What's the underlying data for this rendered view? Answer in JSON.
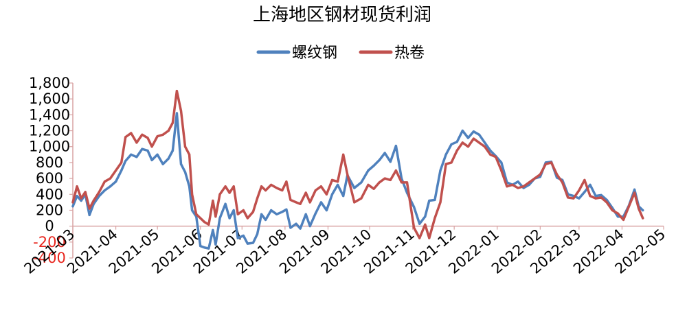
{
  "chart_data": {
    "type": "line",
    "title": "上海地区钢材现货利润",
    "xlabel": "",
    "ylabel": "",
    "ylim": [
      -400,
      1800
    ],
    "yticks": [
      -400,
      -200,
      0,
      200,
      400,
      600,
      800,
      1000,
      1200,
      1400,
      1600,
      1800
    ],
    "ytick_labels": [
      "-400",
      "-200",
      "0",
      "200",
      "400",
      "600",
      "800",
      "1,000",
      "1,200",
      "1,400",
      "1,600",
      "1,800"
    ],
    "negative_tick_color": "#e8261e",
    "xticks": [
      "2021-03",
      "2021-04",
      "2021-05",
      "2021-06",
      "2021-07",
      "2021-08",
      "2021-09",
      "2021-10",
      "2021-11",
      "2021-12",
      "2022-01",
      "2022-02",
      "2022-03",
      "2022-04",
      "2022-05"
    ],
    "legend_position": "top-center",
    "grid": false,
    "axis_color": "#d9a3a3",
    "series": [
      {
        "name": "螺纹钢",
        "color": "#4f81bd",
        "points": [
          [
            "2021-03-01",
            250
          ],
          [
            "2021-03-04",
            380
          ],
          [
            "2021-03-07",
            320
          ],
          [
            "2021-03-10",
            400
          ],
          [
            "2021-03-13",
            140
          ],
          [
            "2021-03-16",
            280
          ],
          [
            "2021-03-20",
            380
          ],
          [
            "2021-03-24",
            450
          ],
          [
            "2021-03-28",
            500
          ],
          [
            "2021-04-01",
            560
          ],
          [
            "2021-04-05",
            700
          ],
          [
            "2021-04-08",
            820
          ],
          [
            "2021-04-12",
            900
          ],
          [
            "2021-04-16",
            870
          ],
          [
            "2021-04-20",
            970
          ],
          [
            "2021-04-24",
            950
          ],
          [
            "2021-04-27",
            830
          ],
          [
            "2021-05-01",
            900
          ],
          [
            "2021-05-05",
            780
          ],
          [
            "2021-05-09",
            850
          ],
          [
            "2021-05-12",
            950
          ],
          [
            "2021-05-15",
            1420
          ],
          [
            "2021-05-18",
            780
          ],
          [
            "2021-05-21",
            680
          ],
          [
            "2021-05-24",
            500
          ],
          [
            "2021-05-26",
            200
          ],
          [
            "2021-05-29",
            120
          ],
          [
            "2021-06-01",
            -250
          ],
          [
            "2021-06-04",
            -270
          ],
          [
            "2021-06-07",
            -280
          ],
          [
            "2021-06-10",
            -50
          ],
          [
            "2021-06-12",
            -230
          ],
          [
            "2021-06-15",
            100
          ],
          [
            "2021-06-19",
            280
          ],
          [
            "2021-06-22",
            100
          ],
          [
            "2021-06-25",
            200
          ],
          [
            "2021-06-28",
            -150
          ],
          [
            "2021-07-02",
            -120
          ],
          [
            "2021-07-05",
            -220
          ],
          [
            "2021-07-09",
            -210
          ],
          [
            "2021-07-12",
            -100
          ],
          [
            "2021-07-15",
            150
          ],
          [
            "2021-07-18",
            80
          ],
          [
            "2021-07-22",
            200
          ],
          [
            "2021-07-26",
            150
          ],
          [
            "2021-07-30",
            180
          ],
          [
            "2021-08-02",
            210
          ],
          [
            "2021-08-05",
            -20
          ],
          [
            "2021-08-09",
            30
          ],
          [
            "2021-08-12",
            -30
          ],
          [
            "2021-08-16",
            150
          ],
          [
            "2021-08-19",
            0
          ],
          [
            "2021-08-23",
            160
          ],
          [
            "2021-08-27",
            300
          ],
          [
            "2021-08-31",
            200
          ],
          [
            "2021-09-04",
            400
          ],
          [
            "2021-09-08",
            520
          ],
          [
            "2021-09-12",
            380
          ],
          [
            "2021-09-15",
            640
          ],
          [
            "2021-09-20",
            480
          ],
          [
            "2021-09-25",
            550
          ],
          [
            "2021-09-30",
            700
          ],
          [
            "2021-10-04",
            760
          ],
          [
            "2021-10-08",
            830
          ],
          [
            "2021-10-12",
            920
          ],
          [
            "2021-10-16",
            810
          ],
          [
            "2021-10-20",
            1010
          ],
          [
            "2021-10-24",
            600
          ],
          [
            "2021-10-28",
            420
          ],
          [
            "2021-11-02",
            240
          ],
          [
            "2021-11-06",
            30
          ],
          [
            "2021-11-10",
            120
          ],
          [
            "2021-11-13",
            320
          ],
          [
            "2021-11-17",
            330
          ],
          [
            "2021-11-21",
            700
          ],
          [
            "2021-11-25",
            900
          ],
          [
            "2021-11-29",
            1030
          ],
          [
            "2021-12-03",
            1060
          ],
          [
            "2021-12-07",
            1200
          ],
          [
            "2021-12-11",
            1110
          ],
          [
            "2021-12-15",
            1190
          ],
          [
            "2021-12-19",
            1150
          ],
          [
            "2021-12-23",
            1050
          ],
          [
            "2021-12-27",
            950
          ],
          [
            "2021-12-31",
            880
          ],
          [
            "2022-01-04",
            800
          ],
          [
            "2022-01-08",
            550
          ],
          [
            "2022-01-12",
            520
          ],
          [
            "2022-01-16",
            560
          ],
          [
            "2022-01-20",
            480
          ],
          [
            "2022-01-24",
            520
          ],
          [
            "2022-01-28",
            600
          ],
          [
            "2022-02-01",
            620
          ],
          [
            "2022-02-05",
            800
          ],
          [
            "2022-02-09",
            810
          ],
          [
            "2022-02-13",
            610
          ],
          [
            "2022-02-17",
            580
          ],
          [
            "2022-02-21",
            400
          ],
          [
            "2022-02-25",
            380
          ],
          [
            "2022-03-01",
            350
          ],
          [
            "2022-03-05",
            430
          ],
          [
            "2022-03-09",
            520
          ],
          [
            "2022-03-13",
            380
          ],
          [
            "2022-03-17",
            390
          ],
          [
            "2022-03-21",
            330
          ],
          [
            "2022-03-25",
            230
          ],
          [
            "2022-03-29",
            120
          ],
          [
            "2022-04-02",
            120
          ],
          [
            "2022-04-06",
            260
          ],
          [
            "2022-04-10",
            460
          ],
          [
            "2022-04-13",
            250
          ],
          [
            "2022-04-16",
            200
          ]
        ]
      },
      {
        "name": "热卷",
        "color": "#c0504d",
        "points": [
          [
            "2021-03-01",
            300
          ],
          [
            "2021-03-04",
            500
          ],
          [
            "2021-03-07",
            350
          ],
          [
            "2021-03-10",
            430
          ],
          [
            "2021-03-13",
            220
          ],
          [
            "2021-03-16",
            320
          ],
          [
            "2021-03-20",
            430
          ],
          [
            "2021-03-24",
            560
          ],
          [
            "2021-03-28",
            600
          ],
          [
            "2021-04-01",
            700
          ],
          [
            "2021-04-05",
            800
          ],
          [
            "2021-04-08",
            1120
          ],
          [
            "2021-04-12",
            1170
          ],
          [
            "2021-04-16",
            1050
          ],
          [
            "2021-04-20",
            1150
          ],
          [
            "2021-04-24",
            1110
          ],
          [
            "2021-04-27",
            1000
          ],
          [
            "2021-05-01",
            1130
          ],
          [
            "2021-05-05",
            1150
          ],
          [
            "2021-05-09",
            1200
          ],
          [
            "2021-05-12",
            1300
          ],
          [
            "2021-05-15",
            1700
          ],
          [
            "2021-05-18",
            1450
          ],
          [
            "2021-05-21",
            1000
          ],
          [
            "2021-05-24",
            900
          ],
          [
            "2021-05-26",
            400
          ],
          [
            "2021-05-29",
            150
          ],
          [
            "2021-06-01",
            100
          ],
          [
            "2021-06-04",
            50
          ],
          [
            "2021-06-07",
            20
          ],
          [
            "2021-06-10",
            320
          ],
          [
            "2021-06-12",
            120
          ],
          [
            "2021-06-15",
            400
          ],
          [
            "2021-06-19",
            500
          ],
          [
            "2021-06-22",
            420
          ],
          [
            "2021-06-25",
            500
          ],
          [
            "2021-06-28",
            150
          ],
          [
            "2021-07-02",
            200
          ],
          [
            "2021-07-05",
            100
          ],
          [
            "2021-07-09",
            180
          ],
          [
            "2021-07-12",
            350
          ],
          [
            "2021-07-15",
            500
          ],
          [
            "2021-07-18",
            450
          ],
          [
            "2021-07-22",
            520
          ],
          [
            "2021-07-26",
            480
          ],
          [
            "2021-07-30",
            450
          ],
          [
            "2021-08-02",
            560
          ],
          [
            "2021-08-05",
            330
          ],
          [
            "2021-08-09",
            300
          ],
          [
            "2021-08-12",
            280
          ],
          [
            "2021-08-16",
            420
          ],
          [
            "2021-08-19",
            300
          ],
          [
            "2021-08-23",
            450
          ],
          [
            "2021-08-27",
            500
          ],
          [
            "2021-08-31",
            400
          ],
          [
            "2021-09-04",
            580
          ],
          [
            "2021-09-08",
            560
          ],
          [
            "2021-09-12",
            900
          ],
          [
            "2021-09-15",
            650
          ],
          [
            "2021-09-20",
            300
          ],
          [
            "2021-09-25",
            350
          ],
          [
            "2021-09-30",
            520
          ],
          [
            "2021-10-04",
            470
          ],
          [
            "2021-10-08",
            550
          ],
          [
            "2021-10-12",
            600
          ],
          [
            "2021-10-16",
            580
          ],
          [
            "2021-10-20",
            700
          ],
          [
            "2021-10-24",
            550
          ],
          [
            "2021-10-28",
            550
          ],
          [
            "2021-11-02",
            -20
          ],
          [
            "2021-11-06",
            -150
          ],
          [
            "2021-11-10",
            20
          ],
          [
            "2021-11-13",
            -150
          ],
          [
            "2021-11-17",
            100
          ],
          [
            "2021-11-21",
            300
          ],
          [
            "2021-11-25",
            780
          ],
          [
            "2021-11-29",
            800
          ],
          [
            "2021-12-03",
            950
          ],
          [
            "2021-12-07",
            1050
          ],
          [
            "2021-12-11",
            1000
          ],
          [
            "2021-12-15",
            1100
          ],
          [
            "2021-12-19",
            1050
          ],
          [
            "2021-12-23",
            1000
          ],
          [
            "2021-12-27",
            900
          ],
          [
            "2021-12-31",
            870
          ],
          [
            "2022-01-04",
            700
          ],
          [
            "2022-01-08",
            500
          ],
          [
            "2022-01-12",
            520
          ],
          [
            "2022-01-16",
            480
          ],
          [
            "2022-01-20",
            500
          ],
          [
            "2022-01-24",
            550
          ],
          [
            "2022-01-28",
            600
          ],
          [
            "2022-02-01",
            650
          ],
          [
            "2022-02-05",
            780
          ],
          [
            "2022-02-09",
            800
          ],
          [
            "2022-02-13",
            650
          ],
          [
            "2022-02-17",
            550
          ],
          [
            "2022-02-21",
            360
          ],
          [
            "2022-02-25",
            350
          ],
          [
            "2022-03-01",
            450
          ],
          [
            "2022-03-05",
            580
          ],
          [
            "2022-03-09",
            380
          ],
          [
            "2022-03-13",
            350
          ],
          [
            "2022-03-17",
            360
          ],
          [
            "2022-03-21",
            300
          ],
          [
            "2022-03-25",
            200
          ],
          [
            "2022-03-29",
            160
          ],
          [
            "2022-04-02",
            80
          ],
          [
            "2022-04-06",
            250
          ],
          [
            "2022-04-10",
            420
          ],
          [
            "2022-04-13",
            220
          ],
          [
            "2022-04-16",
            100
          ]
        ]
      }
    ]
  }
}
